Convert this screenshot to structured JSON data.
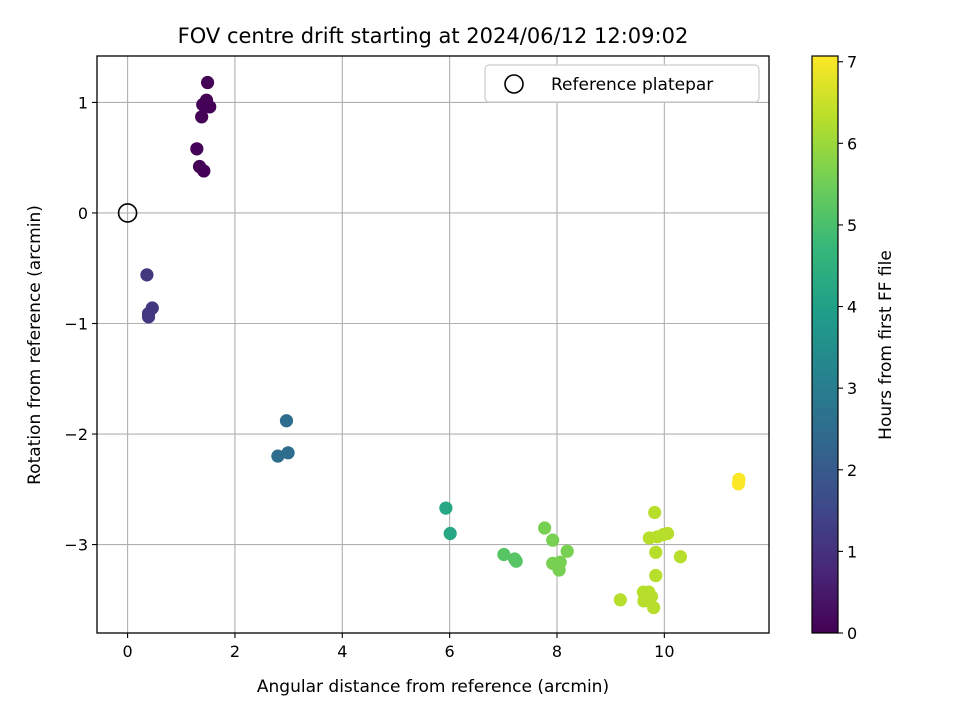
{
  "chart_data": {
    "type": "scatter",
    "title": "FOV centre drift starting at 2024/06/12 12:09:02",
    "xlabel": "Angular distance from reference (arcmin)",
    "ylabel": "Rotation from reference (arcmin)",
    "xlim": [
      -0.57,
      11.95
    ],
    "ylim": [
      -3.8,
      1.42
    ],
    "xticks": [
      0,
      2,
      4,
      6,
      8,
      10
    ],
    "yticks": [
      -3,
      -2,
      -1,
      0,
      1
    ],
    "xtick_labels": [
      "0",
      "2",
      "4",
      "6",
      "8",
      "10"
    ],
    "ytick_labels": [
      "−3",
      "−2",
      "−1",
      "0",
      "1"
    ],
    "grid": true,
    "legend": {
      "position": "top-right",
      "entries": [
        "Reference platepar"
      ]
    },
    "reference": {
      "label": "Reference platepar",
      "x": 0,
      "y": 0
    },
    "colorbar": {
      "label": "Hours from first FF file",
      "colormap": "viridis",
      "range": [
        0,
        7.07
      ],
      "ticks": [
        0,
        1,
        2,
        3,
        4,
        5,
        6,
        7
      ],
      "tick_labels": [
        "0",
        "1",
        "2",
        "3",
        "4",
        "5",
        "6",
        "7"
      ]
    },
    "points": [
      {
        "x": 1.49,
        "y": 1.18,
        "c": 0.05
      },
      {
        "x": 1.47,
        "y": 1.02,
        "c": 0.05
      },
      {
        "x": 1.4,
        "y": 0.98,
        "c": 0.05
      },
      {
        "x": 1.53,
        "y": 0.96,
        "c": 0.05
      },
      {
        "x": 1.38,
        "y": 0.87,
        "c": 0.05
      },
      {
        "x": 1.29,
        "y": 0.58,
        "c": 0.05
      },
      {
        "x": 1.34,
        "y": 0.42,
        "c": 0.05
      },
      {
        "x": 1.42,
        "y": 0.38,
        "c": 0.05
      },
      {
        "x": 0.36,
        "y": -0.56,
        "c": 1.15
      },
      {
        "x": 0.46,
        "y": -0.86,
        "c": 1.15
      },
      {
        "x": 0.39,
        "y": -0.91,
        "c": 1.15
      },
      {
        "x": 0.39,
        "y": -0.94,
        "c": 1.15
      },
      {
        "x": 2.96,
        "y": -1.88,
        "c": 2.5
      },
      {
        "x": 2.8,
        "y": -2.2,
        "c": 2.5
      },
      {
        "x": 2.99,
        "y": -2.17,
        "c": 2.5
      },
      {
        "x": 5.93,
        "y": -2.67,
        "c": 4.2
      },
      {
        "x": 6.01,
        "y": -2.9,
        "c": 4.2
      },
      {
        "x": 7.01,
        "y": -3.09,
        "c": 5.2
      },
      {
        "x": 7.21,
        "y": -3.13,
        "c": 5.2
      },
      {
        "x": 7.24,
        "y": -3.15,
        "c": 5.2
      },
      {
        "x": 7.77,
        "y": -2.85,
        "c": 5.6
      },
      {
        "x": 7.92,
        "y": -2.96,
        "c": 5.6
      },
      {
        "x": 7.92,
        "y": -3.17,
        "c": 5.6
      },
      {
        "x": 8.06,
        "y": -3.16,
        "c": 5.6
      },
      {
        "x": 8.04,
        "y": -3.23,
        "c": 5.6
      },
      {
        "x": 8.19,
        "y": -3.06,
        "c": 5.6
      },
      {
        "x": 9.18,
        "y": -3.5,
        "c": 6.3
      },
      {
        "x": 9.82,
        "y": -2.71,
        "c": 6.3
      },
      {
        "x": 9.72,
        "y": -2.94,
        "c": 6.3
      },
      {
        "x": 9.87,
        "y": -2.93,
        "c": 6.3
      },
      {
        "x": 9.98,
        "y": -2.91,
        "c": 6.3
      },
      {
        "x": 10.06,
        "y": -2.9,
        "c": 6.3
      },
      {
        "x": 9.84,
        "y": -3.07,
        "c": 6.3
      },
      {
        "x": 10.3,
        "y": -3.11,
        "c": 6.3
      },
      {
        "x": 9.84,
        "y": -3.28,
        "c": 6.3
      },
      {
        "x": 9.61,
        "y": -3.43,
        "c": 6.3
      },
      {
        "x": 9.71,
        "y": -3.43,
        "c": 6.3
      },
      {
        "x": 9.76,
        "y": -3.47,
        "c": 6.3
      },
      {
        "x": 9.62,
        "y": -3.51,
        "c": 6.3
      },
      {
        "x": 9.8,
        "y": -3.57,
        "c": 6.3
      },
      {
        "x": 11.39,
        "y": -2.41,
        "c": 7.05
      },
      {
        "x": 11.38,
        "y": -2.45,
        "c": 7.05
      }
    ]
  }
}
